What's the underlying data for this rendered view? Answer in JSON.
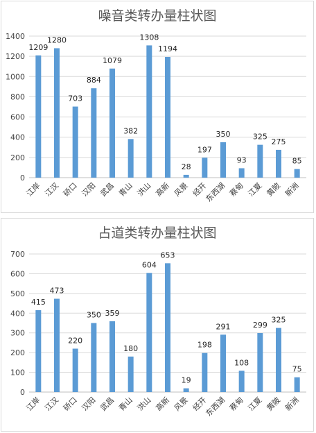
{
  "chart_data": [
    {
      "type": "bar",
      "title": "噪音类转办量柱状图",
      "categories": [
        "江岸",
        "江汉",
        "硚口",
        "汉阳",
        "武昌",
        "青山",
        "洪山",
        "高新",
        "风景",
        "经开",
        "东西湖",
        "蔡甸",
        "江夏",
        "黄陂",
        "新洲"
      ],
      "values": [
        1209,
        1280,
        703,
        884,
        1079,
        382,
        1308,
        1194,
        28,
        197,
        350,
        93,
        325,
        275,
        85
      ],
      "ylim": [
        0,
        1400
      ],
      "yticks": [
        0,
        200,
        400,
        600,
        800,
        1000,
        1200,
        1400
      ],
      "grid": true,
      "bar_color": "#5b9bd5"
    },
    {
      "type": "bar",
      "title": "占道类转办量柱状图",
      "categories": [
        "江岸",
        "江汉",
        "硚口",
        "汉阳",
        "武昌",
        "青山",
        "洪山",
        "高新",
        "风景",
        "经开",
        "东西湖",
        "蔡甸",
        "江夏",
        "黄陂",
        "新洲"
      ],
      "values": [
        415,
        473,
        220,
        350,
        359,
        180,
        604,
        653,
        19,
        198,
        291,
        108,
        299,
        325,
        75
      ],
      "ylim": [
        0,
        700
      ],
      "yticks": [
        0,
        100,
        200,
        300,
        400,
        500,
        600,
        700
      ],
      "grid": true,
      "bar_color": "#5b9bd5"
    }
  ]
}
